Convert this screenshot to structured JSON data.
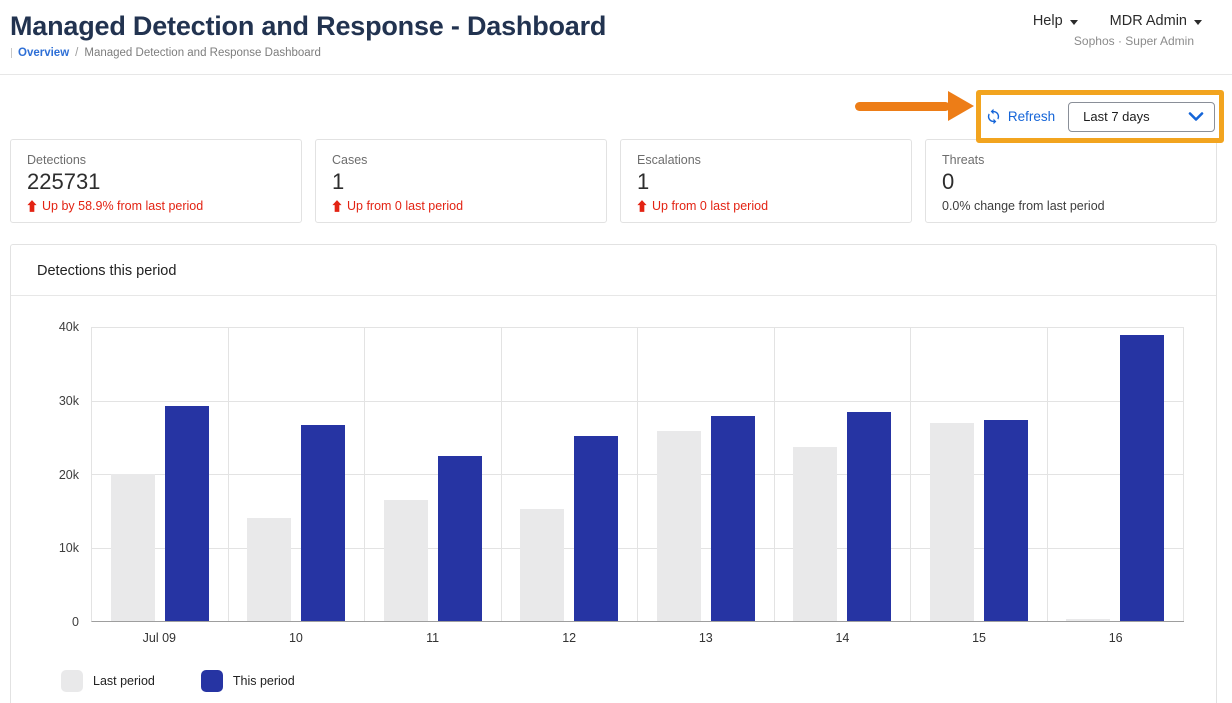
{
  "header": {
    "title": "Managed Detection and Response - Dashboard",
    "breadcrumb": {
      "link": "Overview",
      "separator": "/",
      "current": "Managed Detection and Response Dashboard"
    },
    "menus": {
      "help": "Help",
      "account": "MDR Admin",
      "account_subtitle": "Sophos · Super Admin"
    }
  },
  "toolbar": {
    "refresh_label": "Refresh",
    "period_select": {
      "value": "Last 7 days"
    }
  },
  "stats": {
    "cards": [
      {
        "label": "Detections",
        "value": "225731",
        "delta": "Up by 58.9% from last period",
        "delta_type": "up-red"
      },
      {
        "label": "Cases",
        "value": "1",
        "delta": "Up from 0 last period",
        "delta_type": "up-red"
      },
      {
        "label": "Escalations",
        "value": "1",
        "delta": "Up from 0 last period",
        "delta_type": "up-red"
      },
      {
        "label": "Threats",
        "value": "0",
        "delta": "0.0% change from last period",
        "delta_type": "neutral"
      }
    ]
  },
  "chart_card": {
    "title": "Detections this period"
  },
  "chart_data": {
    "type": "bar",
    "title": "Detections this period",
    "categories": [
      "Jul 09",
      "10",
      "11",
      "12",
      "13",
      "14",
      "15",
      "16"
    ],
    "series": [
      {
        "name": "Last period",
        "color": "#e9e9ea",
        "values": [
          20000,
          14000,
          16500,
          15200,
          25900,
          23700,
          27000,
          300
        ]
      },
      {
        "name": "This period",
        "color": "#2634a3",
        "values": [
          29200,
          26700,
          22400,
          25200,
          27900,
          28400,
          27400,
          38900
        ]
      }
    ],
    "xlabel": "",
    "ylabel": "",
    "ylim": [
      0,
      40000
    ],
    "yticks": [
      "40k",
      "30k",
      "20k",
      "10k",
      "0"
    ],
    "grid": true,
    "legend_position": "bottom"
  },
  "icons": {
    "refresh": "sync-icon",
    "select_chevron": "chevron-down-icon",
    "menu_caret": "caret-down-icon",
    "stat_delta": "arrow-up-icon",
    "annotation": "arrow-right-shape"
  },
  "colors": {
    "highlight_orange": "#F2A41F",
    "annotation_arrow_orange": "#ED7D17",
    "delta_red": "#E32313",
    "link_blue": "#2E6FD6",
    "accent_blue": "#1565D8",
    "bar_this_period": "#2634A3",
    "bar_last_period": "#E9E9EA",
    "title_navy": "#223350"
  }
}
